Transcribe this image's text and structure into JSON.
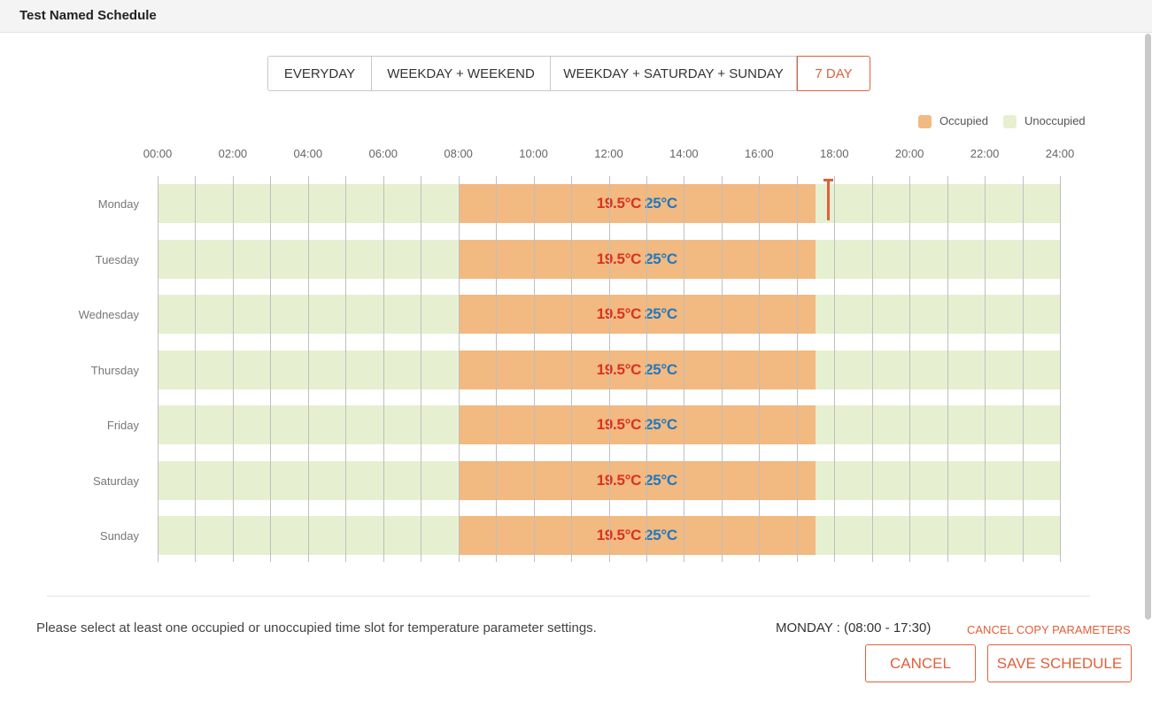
{
  "window": {
    "title": "Test Named Schedule"
  },
  "modes": [
    {
      "label": "EVERYDAY",
      "active": false
    },
    {
      "label": "WEEKDAY + WEEKEND",
      "active": false
    },
    {
      "label": "WEEKDAY + SATURDAY + SUNDAY",
      "active": false
    },
    {
      "label": "7 DAY",
      "active": true
    }
  ],
  "legend": {
    "occupied": {
      "label": "Occupied",
      "color": "#f2b981"
    },
    "unoccupied": {
      "label": "Unoccupied",
      "color": "#e6f0d1"
    }
  },
  "time_axis": [
    "00:00",
    "02:00",
    "04:00",
    "06:00",
    "08:00",
    "10:00",
    "12:00",
    "14:00",
    "16:00",
    "18:00",
    "20:00",
    "22:00",
    "24:00"
  ],
  "schedule": [
    {
      "day": "Monday",
      "occupied": {
        "start": "08:00",
        "end": "17:30",
        "heat": "19.5°C",
        "cool": "25°C"
      }
    },
    {
      "day": "Tuesday",
      "occupied": {
        "start": "08:00",
        "end": "17:30",
        "heat": "19.5°C",
        "cool": "25°C"
      }
    },
    {
      "day": "Wednesday",
      "occupied": {
        "start": "08:00",
        "end": "17:30",
        "heat": "19.5°C",
        "cool": "25°C"
      }
    },
    {
      "day": "Thursday",
      "occupied": {
        "start": "08:00",
        "end": "17:30",
        "heat": "19.5°C",
        "cool": "25°C"
      }
    },
    {
      "day": "Friday",
      "occupied": {
        "start": "08:00",
        "end": "17:30",
        "heat": "19.5°C",
        "cool": "25°C"
      }
    },
    {
      "day": "Saturday",
      "occupied": {
        "start": "08:00",
        "end": "17:30",
        "heat": "19.5°C",
        "cool": "25°C"
      }
    },
    {
      "day": "Sunday",
      "occupied": {
        "start": "08:00",
        "end": "17:30",
        "heat": "19.5°C",
        "cool": "25°C"
      }
    }
  ],
  "current_time_marker": {
    "day": "Monday",
    "time": "17:50"
  },
  "colors": {
    "accent": "#e0603a",
    "heat": "#d9331f",
    "cool": "#1f78bf"
  },
  "footer": {
    "hint": "Please select at least one occupied or unoccupied time slot for temperature parameter settings.",
    "selection": "MONDAY : (08:00 - 17:30)",
    "copy_link": "CANCEL COPY PARAMETERS",
    "cancel_label": "CANCEL",
    "save_label": "SAVE SCHEDULE"
  }
}
